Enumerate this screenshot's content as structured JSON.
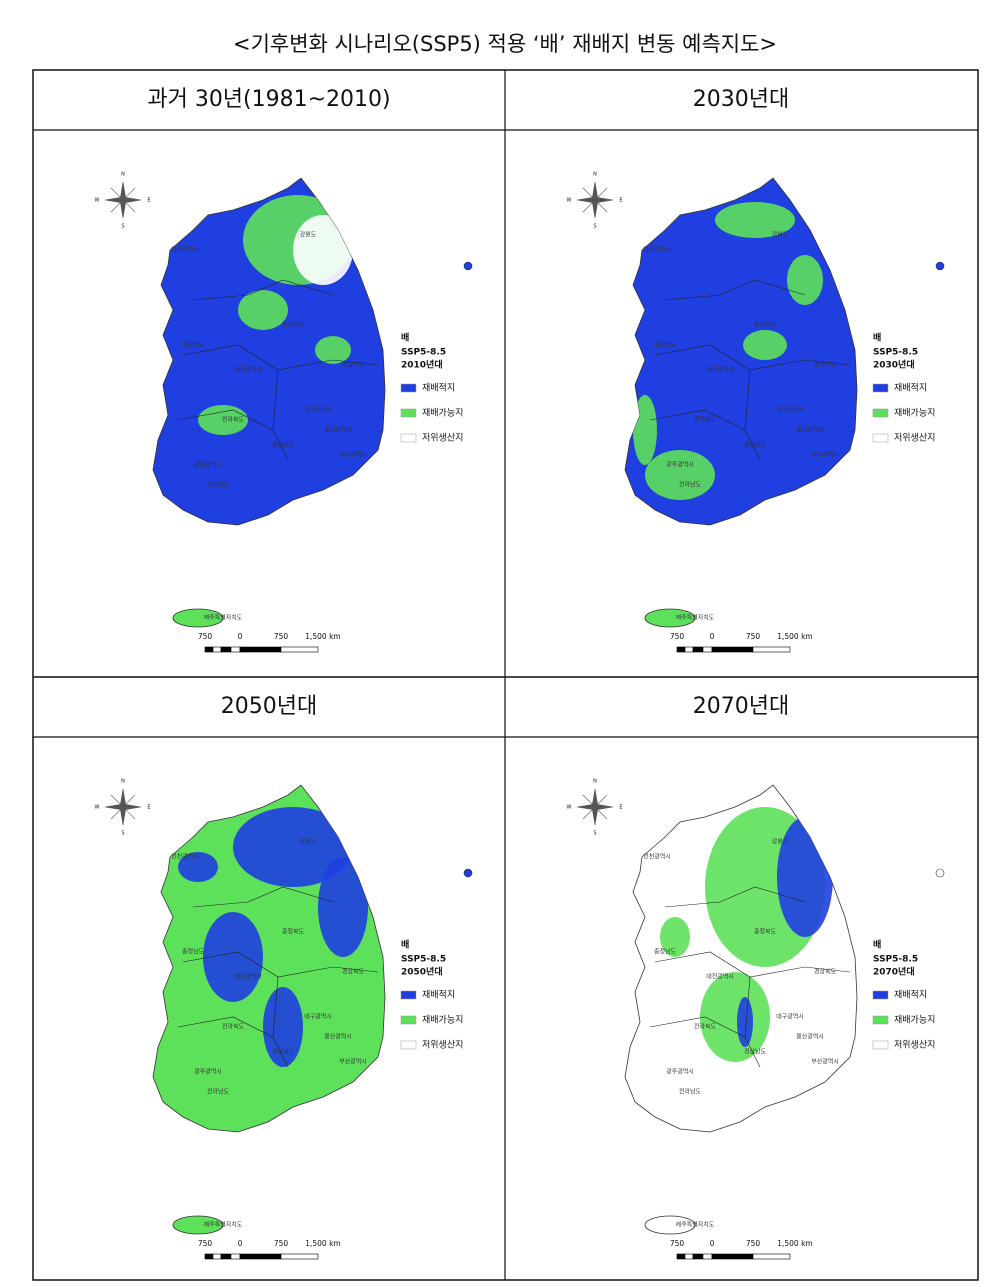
{
  "title": "<기후변화 시나리오(SSP5) 적용 ‘배’ 재배지 변동 예측지도>",
  "panels": [
    {
      "header": "과거 30년(1981~2010)",
      "compass": [
        "N",
        "W",
        "E",
        "S"
      ],
      "legend": {
        "crop": "배",
        "scenario": "SSP5-8.5",
        "period": "2010년대",
        "items": [
          "재배적지",
          "재배가능지",
          "저위생산지"
        ]
      },
      "scale": [
        "750",
        "0",
        "750",
        "1,500 km"
      ],
      "regions": [
        "강원도",
        "인천광역시",
        "충청북도",
        "충청남도",
        "경상북도",
        "대전광역시",
        "전라북도",
        "대구광역시",
        "울산광역시",
        "경상남도",
        "광주광역시",
        "전라남도",
        "부산광역시",
        "제주특별자치도"
      ]
    },
    {
      "header": "2030년대",
      "compass": [
        "N",
        "W",
        "E",
        "S"
      ],
      "legend": {
        "crop": "배",
        "scenario": "SSP5-8.5",
        "period": "2030년대",
        "items": [
          "재배적지",
          "재배가능지",
          "저위생산지"
        ]
      },
      "scale": [
        "750",
        "0",
        "750",
        "1,500 km"
      ],
      "regions": [
        "강원도",
        "인천광역시",
        "충청북도",
        "충청남도",
        "경상북도",
        "대전광역시",
        "전라북도",
        "대구광역시",
        "울산광역시",
        "경상남도",
        "광주광역시",
        "전라남도",
        "부산광역시",
        "제주특별자치도"
      ]
    },
    {
      "header": "2050년대",
      "compass": [
        "N",
        "W",
        "E",
        "S"
      ],
      "legend": {
        "crop": "배",
        "scenario": "SSP5-8.5",
        "period": "2050년대",
        "items": [
          "재배적지",
          "재배가능지",
          "저위생산지"
        ]
      },
      "scale": [
        "750",
        "0",
        "750",
        "1,500 km"
      ],
      "regions": [
        "강원도",
        "인천광역시",
        "충청북도",
        "충청남도",
        "경상북도",
        "대전광역시",
        "전라북도",
        "대구광역시",
        "울산광역시",
        "경상남도",
        "광주광역시",
        "전라남도",
        "부산광역시",
        "제주특별자치도"
      ]
    },
    {
      "header": "2070년대",
      "compass": [
        "N",
        "W",
        "E",
        "S"
      ],
      "legend": {
        "crop": "배",
        "scenario": "SSP5-8.5",
        "period": "2070년대",
        "items": [
          "재배적지",
          "재배가능지",
          "저위생산지"
        ]
      },
      "scale": [
        "750",
        "0",
        "750",
        "1,500 km"
      ],
      "regions": [
        "강원도",
        "인천광역시",
        "충청북도",
        "충청남도",
        "경상북도",
        "대전광역시",
        "전라북도",
        "대구광역시",
        "울산광역시",
        "경상남도",
        "광주광역시",
        "전라남도",
        "부산광역시",
        "제주특별자치도"
      ]
    }
  ]
}
